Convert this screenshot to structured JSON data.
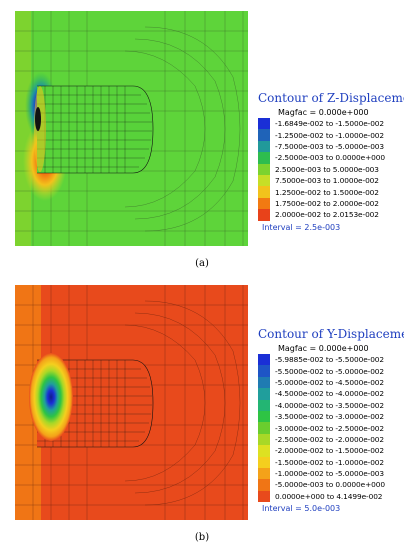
{
  "panel_a": {
    "caption": "(a)",
    "legend": {
      "title": "Contour of Z-Displacement",
      "magfac": "Magfac =  0.000e+000",
      "interval": "Interval = 2.5e-003",
      "entries": [
        {
          "label": "-1.6849e-002 to -1.5000e-002",
          "color": "#1a2fd6"
        },
        {
          "label": "-1.2500e-002 to -1.0000e-002",
          "color": "#1f63b8"
        },
        {
          "label": "-7.5000e-003 to -5.0000e-003",
          "color": "#21999a"
        },
        {
          "label": "-2.5000e-003 to  0.0000e+000",
          "color": "#2ebd4f"
        },
        {
          "label": "2.5000e-003 to  5.0000e-003",
          "color": "#7dd32f"
        },
        {
          "label": "7.5000e-003 to  1.0000e-002",
          "color": "#c7de27"
        },
        {
          "label": "1.2500e-002 to  1.5000e-002",
          "color": "#f2c21c"
        },
        {
          "label": "1.7500e-002 to  2.0000e-002",
          "color": "#f27a12"
        },
        {
          "label": "2.0000e-002 to  2.0153e-002",
          "color": "#e8421a"
        }
      ]
    }
  },
  "panel_b": {
    "caption": "(b)",
    "legend": {
      "title": "Contour of Y-Displacement",
      "magfac": "Magfac =  0.000e+000",
      "interval": "Interval = 5.0e-003",
      "entries": [
        {
          "label": "-5.9885e-002 to -5.5000e-002",
          "color": "#1a2fd6"
        },
        {
          "label": "-5.5000e-002 to -5.0000e-002",
          "color": "#1e55c6"
        },
        {
          "label": "-5.0000e-002 to -4.5000e-002",
          "color": "#1f7bb2"
        },
        {
          "label": "-4.5000e-002 to -4.0000e-002",
          "color": "#209e9c"
        },
        {
          "label": "-4.0000e-002 to -3.5000e-002",
          "color": "#23b573"
        },
        {
          "label": "-3.5000e-002 to -3.0000e-002",
          "color": "#2ec444"
        },
        {
          "label": "-3.0000e-002 to -2.5000e-002",
          "color": "#6acd2e"
        },
        {
          "label": "-2.5000e-002 to -2.0000e-002",
          "color": "#a8d827"
        },
        {
          "label": "-2.0000e-002 to -1.5000e-002",
          "color": "#dde122"
        },
        {
          "label": "-1.5000e-002 to -1.0000e-002",
          "color": "#f4cf1e"
        },
        {
          "label": "-1.0000e-002 to -5.0000e-003",
          "color": "#f4a219"
        },
        {
          "label": "-5.0000e-003 to  0.0000e+000",
          "color": "#f07515"
        },
        {
          "label": "0.0000e+000 to  4.1499e-002",
          "color": "#e84a1c"
        }
      ]
    }
  }
}
